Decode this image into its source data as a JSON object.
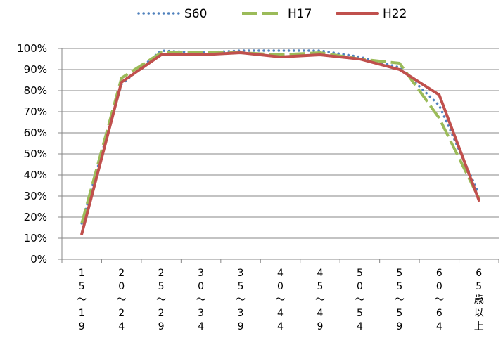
{
  "chart_data": {
    "type": "line",
    "categories": [
      "15〜19",
      "20〜24",
      "25〜29",
      "30〜34",
      "35〜39",
      "40〜44",
      "45〜49",
      "50〜54",
      "55〜59",
      "60〜64",
      "65歳以上"
    ],
    "category_chars": [
      [
        "1",
        "5",
        "〜",
        "1",
        "9"
      ],
      [
        "2",
        "0",
        "〜",
        "2",
        "4"
      ],
      [
        "2",
        "5",
        "〜",
        "2",
        "9"
      ],
      [
        "3",
        "0",
        "〜",
        "3",
        "4"
      ],
      [
        "3",
        "5",
        "〜",
        "3",
        "9"
      ],
      [
        "4",
        "0",
        "〜",
        "4",
        "4"
      ],
      [
        "4",
        "5",
        "〜",
        "4",
        "9"
      ],
      [
        "5",
        "0",
        "〜",
        "5",
        "4"
      ],
      [
        "5",
        "5",
        "〜",
        "5",
        "9"
      ],
      [
        "6",
        "0",
        "〜",
        "6",
        "4"
      ],
      [
        "6",
        "5",
        "歳",
        "以",
        "上"
      ]
    ],
    "series": [
      {
        "name": "S60",
        "style": "dotted",
        "color": "#4f81bd",
        "values": [
          17,
          83,
          99,
          98,
          99,
          99,
          99,
          96,
          91,
          73,
          31
        ]
      },
      {
        "name": "H17",
        "style": "dashed",
        "color": "#9bbb59",
        "values": [
          17,
          86,
          98,
          98,
          98,
          97,
          98,
          95,
          93,
          67,
          29
        ]
      },
      {
        "name": "H22",
        "style": "solid",
        "color": "#c0504d",
        "values": [
          12,
          84,
          97,
          97,
          98,
          96,
          97,
          95,
          90,
          78,
          28
        ]
      }
    ],
    "ylim": [
      0,
      100
    ],
    "yticks": [
      "0%",
      "10%",
      "20%",
      "30%",
      "40%",
      "50%",
      "60%",
      "70%",
      "80%",
      "90%",
      "100%"
    ],
    "grid": true,
    "legend_position": "top"
  }
}
